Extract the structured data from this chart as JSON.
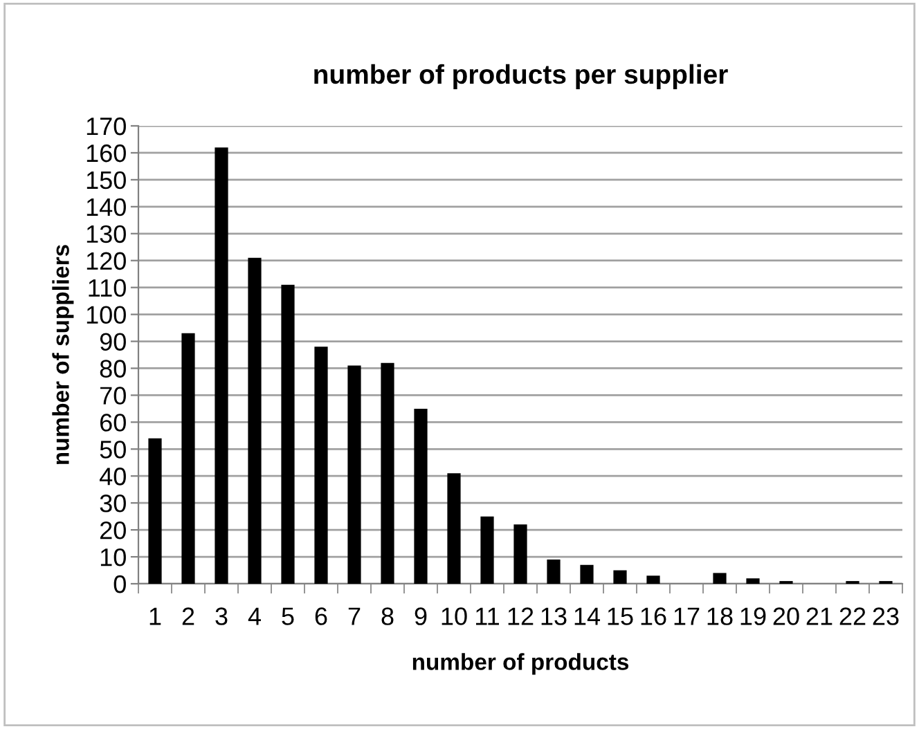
{
  "chart_data": {
    "type": "bar",
    "title": "number of products per supplier",
    "xlabel": "number of products",
    "ylabel": "number of suppliers",
    "categories": [
      "1",
      "2",
      "3",
      "4",
      "5",
      "6",
      "7",
      "8",
      "9",
      "10",
      "11",
      "12",
      "13",
      "14",
      "15",
      "16",
      "17",
      "18",
      "19",
      "20",
      "21",
      "22",
      "23"
    ],
    "values": [
      54,
      93,
      162,
      121,
      111,
      88,
      81,
      82,
      65,
      41,
      25,
      22,
      9,
      7,
      5,
      3,
      0,
      4,
      2,
      1,
      0,
      1,
      1
    ],
    "color": "#000000",
    "ylim": [
      0,
      170
    ],
    "yticks": [
      0,
      10,
      20,
      30,
      40,
      50,
      60,
      70,
      80,
      90,
      100,
      110,
      120,
      130,
      140,
      150,
      160,
      170
    ],
    "grid": "y",
    "legend": false
  }
}
